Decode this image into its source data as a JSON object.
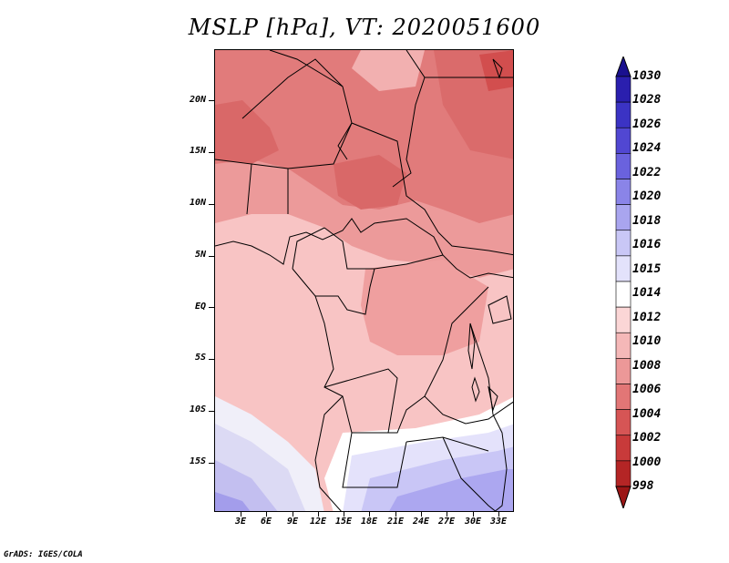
{
  "title": "MSLP [hPa], VT: 2020051600",
  "credit": "GrADS: IGES/COLA",
  "map": {
    "lat_ticks": [
      "20N",
      "15N",
      "10N",
      "5N",
      "EQ",
      "5S",
      "10S",
      "15S"
    ],
    "lon_ticks": [
      "3E",
      "6E",
      "9E",
      "12E",
      "15E",
      "18E",
      "21E",
      "24E",
      "27E",
      "30E",
      "33E"
    ]
  },
  "colorbar": {
    "labels": [
      "1030",
      "1028",
      "1026",
      "1024",
      "1022",
      "1020",
      "1018",
      "1016",
      "1015",
      "1014",
      "1012",
      "1010",
      "1008",
      "1006",
      "1004",
      "1002",
      "1000",
      "998"
    ],
    "colors": [
      "#1a108f",
      "#2a1fae",
      "#3b33c4",
      "#5147d2",
      "#6a62de",
      "#8a84e8",
      "#a9a5ef",
      "#c9c7f6",
      "#e3e2fb",
      "#ffffff",
      "#fbd6d6",
      "#f5b8b8",
      "#ec9898",
      "#e27676",
      "#d65555",
      "#c83a3a",
      "#b42525",
      "#9b1515"
    ]
  }
}
